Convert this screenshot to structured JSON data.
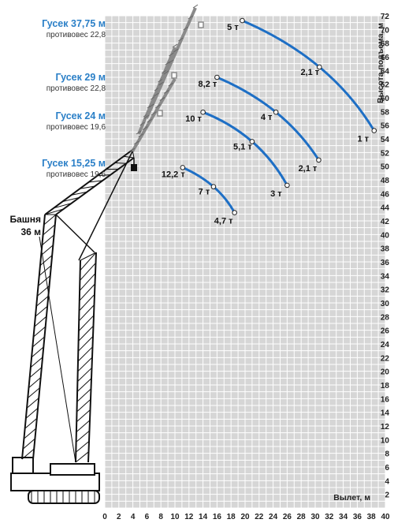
{
  "chart_data": {
    "type": "line",
    "title": "",
    "xlabel": "Вылет, м",
    "ylabel": "Высота подъема, м",
    "xlim": [
      0,
      40
    ],
    "ylim": [
      0,
      72
    ],
    "x_ticks": [
      "0",
      "2",
      "4",
      "6",
      "8",
      "10",
      "12",
      "14",
      "16",
      "18",
      "20",
      "22",
      "24",
      "26",
      "28",
      "30",
      "32",
      "34",
      "36",
      "38",
      "40"
    ],
    "y_ticks": [
      "2",
      "4",
      "6",
      "8",
      "10",
      "12",
      "14",
      "16",
      "18",
      "20",
      "22",
      "24",
      "26",
      "28",
      "30",
      "32",
      "34",
      "36",
      "38",
      "40",
      "42",
      "44",
      "46",
      "48",
      "50",
      "52",
      "54",
      "56",
      "58",
      "60",
      "62",
      "64",
      "66",
      "68",
      "70",
      "72"
    ],
    "grid": true,
    "series_color": "#1e6fc5",
    "series": [
      {
        "points": [
          {
            "x": 19.6,
            "y": 71.3,
            "label": "5 т"
          },
          {
            "x": 30.6,
            "y": 64.5,
            "label": "2,1 т"
          },
          {
            "x": 38.4,
            "y": 55.2,
            "label": "1 т"
          }
        ]
      },
      {
        "points": [
          {
            "x": 16.0,
            "y": 63.0,
            "label": "8,2 т"
          },
          {
            "x": 24.4,
            "y": 57.9,
            "label": "4 т"
          },
          {
            "x": 30.5,
            "y": 50.9,
            "label": "2,1 т"
          }
        ]
      },
      {
        "points": [
          {
            "x": 14.0,
            "y": 57.9,
            "label": "10 т"
          },
          {
            "x": 21.0,
            "y": 53.6,
            "label": "5,1 т"
          },
          {
            "x": 26.0,
            "y": 47.2,
            "label": "3 т"
          }
        ]
      },
      {
        "points": [
          {
            "x": 11.1,
            "y": 49.8,
            "label": "12,2 т"
          },
          {
            "x": 15.5,
            "y": 47.0,
            "label": "7 т"
          },
          {
            "x": 18.5,
            "y": 43.2,
            "label": "4,7 т"
          }
        ]
      }
    ]
  },
  "jibs": [
    {
      "name": "Гусек 37,75 м",
      "counterweight": "противовес 22,8"
    },
    {
      "name": "Гусек 29 м",
      "counterweight": "противовес 22,8"
    },
    {
      "name": "Гусек 24 м",
      "counterweight": "противовес 19,6"
    },
    {
      "name": "Гусек 15,25 м",
      "counterweight": "противовес 19,6"
    }
  ],
  "tower": {
    "line1": "Башня",
    "line2": "36 м"
  },
  "colors": {
    "accent": "#2a7fc7",
    "grid_bg": "#d6d6d6",
    "grid_line": "#ffffff",
    "crane": "#111111"
  }
}
